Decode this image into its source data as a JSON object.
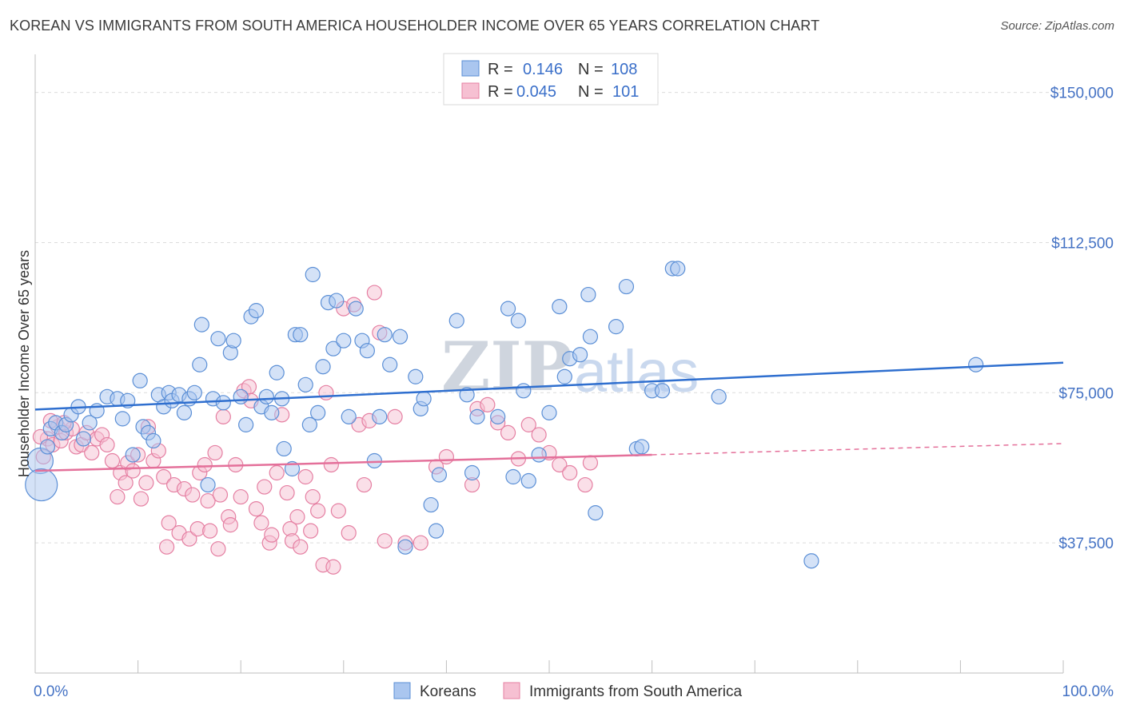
{
  "title": "KOREAN VS IMMIGRANTS FROM SOUTH AMERICA HOUSEHOLDER INCOME OVER 65 YEARS CORRELATION CHART",
  "source": "Source: ZipAtlas.com",
  "watermark": {
    "zip": "ZIP",
    "atlas": "atlas"
  },
  "colors": {
    "blue": "#5b8fd6",
    "blue_fill": "#aac6ef",
    "pink": "#e57fa2",
    "pink_fill": "#f6c0d2",
    "blue_line": "#2f6fcf",
    "pink_line": "#e4709a",
    "axis_label": "#4472c4"
  },
  "legend": {
    "rows": [
      {
        "r_label": "R =",
        "r_value": "0.146",
        "n_label": "N =",
        "n_value": "108"
      },
      {
        "r_label": "R =",
        "r_value": "0.045",
        "n_label": "N =",
        "n_value": "101"
      }
    ]
  },
  "chart_data": {
    "type": "scatter",
    "title": "KOREAN VS IMMIGRANTS FROM SOUTH AMERICA HOUSEHOLDER INCOME OVER 65 YEARS CORRELATION CHART",
    "xlabel": "",
    "ylabel": "Householder Income Over 65 years",
    "xlim": [
      0,
      100
    ],
    "ylim": [
      5000,
      157500
    ],
    "x_tick_labels": [
      "0.0%",
      "100.0%"
    ],
    "y_ticks": [
      37500,
      75000,
      112500,
      150000
    ],
    "y_tick_labels": [
      "$37,500",
      "$75,000",
      "$112,500",
      "$150,000"
    ],
    "grid": true,
    "legend_position": "bottom-center",
    "series": [
      {
        "name": "Koreans",
        "r": 0.146,
        "n": 108,
        "trend": {
          "x": [
            0,
            100
          ],
          "y": [
            70800,
            82500
          ]
        },
        "points": [
          [
            0.5,
            58000
          ],
          [
            0.6,
            52000
          ],
          [
            1.2,
            61500
          ],
          [
            1.5,
            66000
          ],
          [
            2.0,
            67500
          ],
          [
            2.6,
            65000
          ],
          [
            3.0,
            67000
          ],
          [
            3.5,
            69500
          ],
          [
            4.2,
            71500
          ],
          [
            4.7,
            63500
          ],
          [
            5.3,
            67500
          ],
          [
            6.0,
            70500
          ],
          [
            7.0,
            74000
          ],
          [
            8.0,
            73500
          ],
          [
            8.5,
            68500
          ],
          [
            9.0,
            73000
          ],
          [
            9.5,
            59500
          ],
          [
            10.2,
            78000
          ],
          [
            10.5,
            66500
          ],
          [
            11.0,
            65000
          ],
          [
            11.5,
            63000
          ],
          [
            12.0,
            74500
          ],
          [
            12.5,
            71500
          ],
          [
            13.0,
            75000
          ],
          [
            13.3,
            73000
          ],
          [
            14.0,
            74500
          ],
          [
            14.5,
            70000
          ],
          [
            15.0,
            73500
          ],
          [
            15.5,
            75000
          ],
          [
            16.0,
            82000
          ],
          [
            16.2,
            92000
          ],
          [
            16.8,
            52000
          ],
          [
            17.3,
            73500
          ],
          [
            17.8,
            88500
          ],
          [
            18.3,
            72500
          ],
          [
            19.0,
            85000
          ],
          [
            19.3,
            88000
          ],
          [
            20.0,
            74000
          ],
          [
            20.5,
            67000
          ],
          [
            21.0,
            94000
          ],
          [
            21.5,
            95500
          ],
          [
            22.0,
            71500
          ],
          [
            22.5,
            74000
          ],
          [
            23.0,
            70000
          ],
          [
            23.5,
            80000
          ],
          [
            24.0,
            73500
          ],
          [
            24.2,
            61000
          ],
          [
            25.0,
            56000
          ],
          [
            25.3,
            89500
          ],
          [
            25.8,
            89500
          ],
          [
            26.3,
            77000
          ],
          [
            26.7,
            67000
          ],
          [
            27.0,
            104500
          ],
          [
            27.5,
            70000
          ],
          [
            28.0,
            81500
          ],
          [
            28.5,
            97500
          ],
          [
            29.0,
            86000
          ],
          [
            29.3,
            98000
          ],
          [
            30.0,
            88000
          ],
          [
            30.5,
            69000
          ],
          [
            31.2,
            96000
          ],
          [
            31.8,
            88000
          ],
          [
            32.3,
            85500
          ],
          [
            33.0,
            58000
          ],
          [
            33.5,
            69000
          ],
          [
            34.0,
            89500
          ],
          [
            34.5,
            82000
          ],
          [
            35.5,
            89000
          ],
          [
            36.0,
            36500
          ],
          [
            37.0,
            79000
          ],
          [
            37.5,
            71000
          ],
          [
            37.8,
            73500
          ],
          [
            38.5,
            47000
          ],
          [
            39.0,
            40500
          ],
          [
            39.3,
            54500
          ],
          [
            41.0,
            93000
          ],
          [
            42.0,
            74500
          ],
          [
            42.5,
            55000
          ],
          [
            43.0,
            69000
          ],
          [
            45.0,
            69000
          ],
          [
            46.0,
            96000
          ],
          [
            46.5,
            54000
          ],
          [
            47.0,
            93000
          ],
          [
            47.5,
            75500
          ],
          [
            48.0,
            53000
          ],
          [
            49.0,
            59500
          ],
          [
            50.0,
            70000
          ],
          [
            51.0,
            96500
          ],
          [
            51.5,
            79000
          ],
          [
            52.0,
            83500
          ],
          [
            53.0,
            84500
          ],
          [
            53.8,
            99500
          ],
          [
            54.0,
            89000
          ],
          [
            54.5,
            45000
          ],
          [
            56.5,
            91500
          ],
          [
            57.5,
            101500
          ],
          [
            58.5,
            61000
          ],
          [
            59.0,
            61500
          ],
          [
            60.0,
            75500
          ],
          [
            61.0,
            75500
          ],
          [
            62.0,
            106000
          ],
          [
            62.5,
            106000
          ],
          [
            66.5,
            74000
          ],
          [
            75.5,
            33000
          ],
          [
            91.5,
            82000
          ]
        ]
      },
      {
        "name": "Immigrants from South America",
        "r": 0.045,
        "n": 101,
        "trend": {
          "x": [
            0,
            60
          ],
          "y": [
            55500,
            59500
          ]
        },
        "trend_dashed": {
          "x": [
            60,
            100
          ],
          "y": [
            59500,
            62300
          ]
        },
        "points": [
          [
            0.8,
            59000
          ],
          [
            1.2,
            63500
          ],
          [
            1.7,
            62000
          ],
          [
            2.2,
            66500
          ],
          [
            2.5,
            63000
          ],
          [
            3.0,
            65000
          ],
          [
            3.6,
            66000
          ],
          [
            4.0,
            61500
          ],
          [
            4.5,
            62000
          ],
          [
            5.0,
            65000
          ],
          [
            5.5,
            60000
          ],
          [
            6.0,
            63500
          ],
          [
            6.5,
            64500
          ],
          [
            7.0,
            62000
          ],
          [
            7.5,
            58000
          ],
          [
            8.0,
            49000
          ],
          [
            8.3,
            55000
          ],
          [
            8.8,
            52500
          ],
          [
            9.0,
            57500
          ],
          [
            9.5,
            55500
          ],
          [
            10.0,
            59500
          ],
          [
            10.3,
            48500
          ],
          [
            10.8,
            52500
          ],
          [
            11.0,
            66500
          ],
          [
            11.5,
            58000
          ],
          [
            12.0,
            60500
          ],
          [
            12.5,
            54000
          ],
          [
            12.8,
            36500
          ],
          [
            13.0,
            42500
          ],
          [
            13.5,
            52000
          ],
          [
            14.0,
            40000
          ],
          [
            14.5,
            51000
          ],
          [
            15.0,
            38500
          ],
          [
            15.3,
            49500
          ],
          [
            15.8,
            41000
          ],
          [
            16.0,
            55000
          ],
          [
            16.5,
            57000
          ],
          [
            16.8,
            48000
          ],
          [
            17.0,
            40500
          ],
          [
            17.5,
            60000
          ],
          [
            17.8,
            36000
          ],
          [
            18.0,
            49500
          ],
          [
            18.3,
            69000
          ],
          [
            18.8,
            44000
          ],
          [
            19.0,
            42000
          ],
          [
            19.5,
            57000
          ],
          [
            20.0,
            49000
          ],
          [
            20.3,
            75500
          ],
          [
            20.8,
            76500
          ],
          [
            21.0,
            73000
          ],
          [
            21.5,
            46000
          ],
          [
            22.0,
            42500
          ],
          [
            22.3,
            51500
          ],
          [
            22.8,
            37500
          ],
          [
            23.0,
            39500
          ],
          [
            23.5,
            55000
          ],
          [
            24.0,
            69500
          ],
          [
            24.5,
            50000
          ],
          [
            24.8,
            41000
          ],
          [
            25.0,
            38000
          ],
          [
            25.5,
            44000
          ],
          [
            25.8,
            36500
          ],
          [
            26.3,
            54000
          ],
          [
            26.8,
            40500
          ],
          [
            27.0,
            49000
          ],
          [
            27.5,
            45500
          ],
          [
            28.0,
            32000
          ],
          [
            28.3,
            75000
          ],
          [
            28.8,
            57000
          ],
          [
            29.0,
            31500
          ],
          [
            29.5,
            45500
          ],
          [
            30.0,
            96000
          ],
          [
            30.5,
            40000
          ],
          [
            31.0,
            97000
          ],
          [
            31.5,
            67000
          ],
          [
            32.0,
            52000
          ],
          [
            32.5,
            68000
          ],
          [
            33.0,
            100000
          ],
          [
            33.5,
            90000
          ],
          [
            34.0,
            38000
          ],
          [
            35.0,
            69000
          ],
          [
            36.0,
            37500
          ],
          [
            37.5,
            37500
          ],
          [
            39.0,
            56500
          ],
          [
            40.0,
            59000
          ],
          [
            42.5,
            52000
          ],
          [
            43.0,
            71000
          ],
          [
            44.0,
            72000
          ],
          [
            45.0,
            67500
          ],
          [
            46.0,
            65000
          ],
          [
            47.0,
            58500
          ],
          [
            48.0,
            67000
          ],
          [
            49.0,
            64500
          ],
          [
            50.0,
            60000
          ],
          [
            51.0,
            57000
          ],
          [
            52.0,
            55000
          ],
          [
            53.5,
            52000
          ],
          [
            54.0,
            57500
          ],
          [
            1.5,
            68000
          ],
          [
            2.8,
            67500
          ],
          [
            0.5,
            64000
          ]
        ]
      }
    ]
  },
  "bottom_legend": [
    {
      "label": "Koreans"
    },
    {
      "label": "Immigrants from South America"
    }
  ]
}
